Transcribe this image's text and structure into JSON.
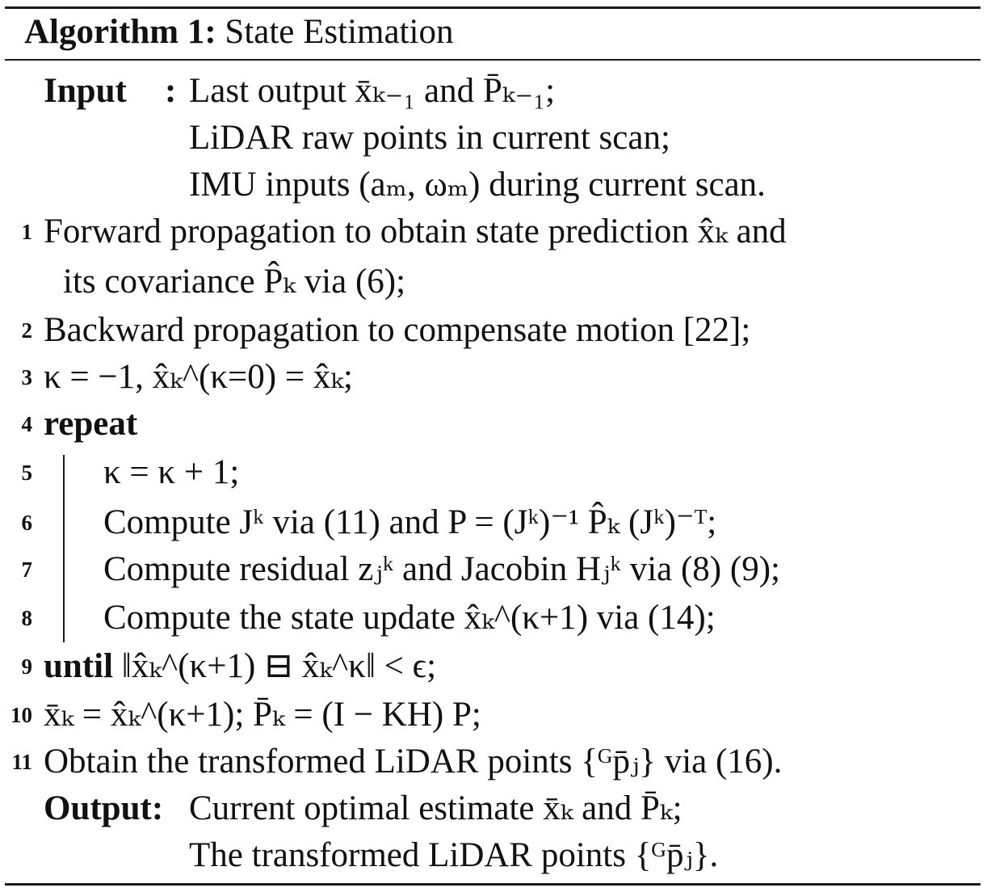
{
  "algorithm": {
    "label": "Algorithm 1:",
    "name": "State Estimation",
    "input_label": "Input",
    "output_label": "Output:",
    "colon": ":",
    "input_lines": [
      "Last output x̄ₖ₋₁ and P̄ₖ₋₁;",
      "LiDAR raw points in current scan;",
      "IMU inputs (aₘ, ωₘ) during current scan."
    ],
    "steps": [
      {
        "n": "1",
        "text": "Forward propagation to obtain state prediction x̂ₖ and"
      },
      {
        "n": "",
        "text": "its covariance P̂ₖ via (6);"
      },
      {
        "n": "2",
        "text": "Backward propagation to compensate motion [22];"
      },
      {
        "n": "3",
        "text": "κ = −1, x̂ₖ^(κ=0) = x̂ₖ;"
      },
      {
        "n": "4",
        "text": "repeat"
      },
      {
        "n": "5",
        "text": "κ = κ + 1;"
      },
      {
        "n": "6",
        "text": "Compute Jᵏ via (11) and P = (Jᵏ)⁻¹ P̂ₖ (Jᵏ)⁻ᵀ;"
      },
      {
        "n": "7",
        "text": "Compute residual zⱼᵏ and Jacobin Hⱼᵏ via (8) (9);"
      },
      {
        "n": "8",
        "text": "Compute the state update x̂ₖ^(κ+1) via (14);"
      },
      {
        "n": "9",
        "text": "until ‖x̂ₖ^(κ+1) ⊟ x̂ₖ^κ‖ < ϵ;"
      },
      {
        "n": "10",
        "text": "x̄ₖ = x̂ₖ^(κ+1); P̄ₖ = (I − KH) P;"
      },
      {
        "n": "11",
        "text": "Obtain the transformed LiDAR points {ᴳp̄ⱼ} via (16)."
      }
    ],
    "output_lines": [
      "Current optimal estimate x̄ₖ and P̄ₖ;",
      "The transformed LiDAR points {ᴳp̄ⱼ}."
    ]
  }
}
